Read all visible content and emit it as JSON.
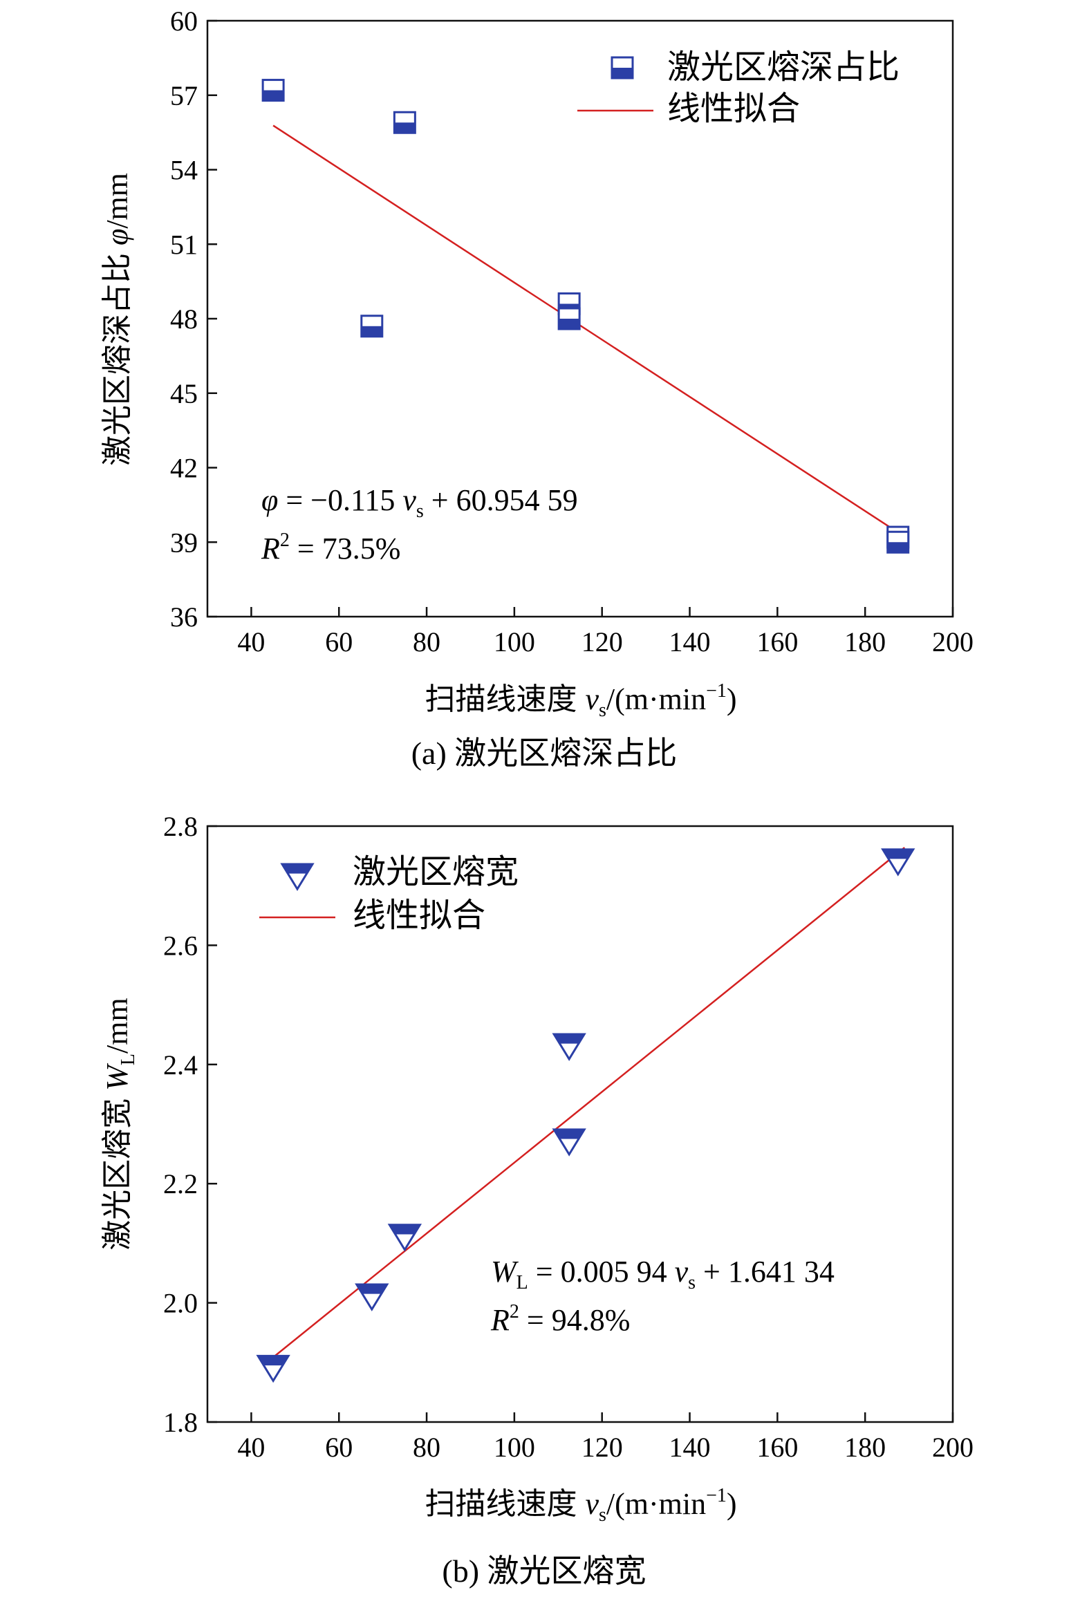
{
  "chart_data": [
    {
      "type": "scatter",
      "caption": "(a) 激光区熔深占比",
      "xlabel": "扫描线速度",
      "xlabel_var": "v",
      "xlabel_sub": "s",
      "xlabel_unit": "/(m·min",
      "xlabel_unit_sup": "−1",
      "xlabel_unit_close": ")",
      "ylabel": "激光区熔深占比 ",
      "ylabel_var": "φ",
      "ylabel_unit": "/mm",
      "xlim": [
        30,
        200
      ],
      "ylim": [
        36,
        60
      ],
      "xticks": [
        40,
        60,
        80,
        100,
        120,
        140,
        160,
        180,
        200
      ],
      "yticks": [
        36,
        39,
        42,
        45,
        48,
        51,
        54,
        57,
        60
      ],
      "marker": "half-filled-square",
      "series": [
        {
          "name": "激光区熔深占比",
          "x": [
            45,
            67.5,
            75,
            112.5,
            112.5,
            187.5,
            187.5
          ],
          "y": [
            57.2,
            47.7,
            55.9,
            48.6,
            48.0,
            39.2,
            39.0
          ]
        }
      ],
      "fit": {
        "name": "线性拟合",
        "slope": -0.115,
        "intercept": 60.95459,
        "x_range": [
          45,
          189
        ]
      },
      "equation": {
        "lhs": "φ",
        "rhs_a": " = −0.115 ",
        "var": "v",
        "sub": "s",
        "rhs_b": " + 60.954 59"
      },
      "r2": {
        "label": "R",
        "sup": "2",
        "value": " = 73.5%"
      },
      "legend_position": "top-right"
    },
    {
      "type": "scatter",
      "caption": "(b) 激光区熔宽",
      "xlabel": "扫描线速度",
      "xlabel_var": "v",
      "xlabel_sub": "s",
      "xlabel_unit": "/(m·min",
      "xlabel_unit_sup": "−1",
      "xlabel_unit_close": ")",
      "ylabel": "激光区熔宽 ",
      "ylabel_var": "W",
      "ylabel_sub": "L",
      "ylabel_unit": "/mm",
      "xlim": [
        30,
        200
      ],
      "ylim": [
        1.8,
        2.8
      ],
      "xticks": [
        40,
        60,
        80,
        100,
        120,
        140,
        160,
        180,
        200
      ],
      "yticks": [
        1.8,
        2.0,
        2.2,
        2.4,
        2.6,
        2.8
      ],
      "ytick_labels": [
        "1.8",
        "2.0",
        "2.2",
        "2.4",
        "2.6",
        "2.8"
      ],
      "marker": "half-filled-down-triangle",
      "series": [
        {
          "name": "激光区熔宽",
          "x": [
            45,
            67.5,
            75,
            112.5,
            112.5,
            187.5
          ],
          "y": [
            1.89,
            2.01,
            2.11,
            2.43,
            2.27,
            2.74
          ]
        }
      ],
      "fit": {
        "name": "线性拟合",
        "slope": 0.00594,
        "intercept": 1.64134,
        "x_range": [
          45,
          189
        ]
      },
      "equation": {
        "lhs": "W",
        "lhs_sub": "L",
        "rhs_a": " = 0.005 94 ",
        "var": "v",
        "sub": "s",
        "rhs_b": " + 1.641 34"
      },
      "r2": {
        "label": "R",
        "sup": "2",
        "value": " = 94.8%"
      },
      "legend_position": "top-left"
    }
  ],
  "colors": {
    "marker": "#2b3fa6",
    "fit": "#d42020",
    "axis": "#111111"
  }
}
